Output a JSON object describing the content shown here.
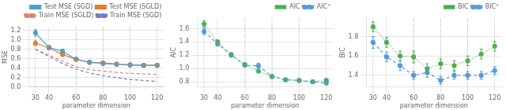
{
  "chart_data": [
    {
      "type": "line",
      "xlabel": "parameter dimension",
      "ylabel": "MSE",
      "x": [
        30,
        40,
        50,
        60,
        70,
        80,
        90,
        100,
        110,
        120
      ],
      "series": [
        {
          "name": "Test MSE (SGD)",
          "color": "#4C9FD4",
          "marker": "circle",
          "line_style": "solid",
          "values": [
            1.15,
            0.84,
            0.76,
            0.59,
            0.53,
            0.5,
            0.48,
            0.47,
            0.46,
            0.46
          ],
          "errors": [
            0.07,
            0.04,
            0.04,
            0.02,
            0.02,
            0.02,
            0.015,
            0.015,
            0.015,
            0.015
          ]
        },
        {
          "name": "Test MSE (SGLD)",
          "color": "#E87D2B",
          "marker": "circle",
          "line_style": "solid",
          "values": [
            0.93,
            0.83,
            0.69,
            0.59,
            0.52,
            0.51,
            0.49,
            0.47,
            0.46,
            0.46
          ],
          "errors": [
            0.05,
            0.04,
            0.03,
            0.02,
            0.02,
            0.02,
            0.015,
            0.015,
            0.015,
            0.015
          ]
        },
        {
          "name": "Train MSE (SGLD)",
          "color": "#E87D77",
          "marker": "none",
          "line_style": "dashed",
          "values": [
            0.8,
            0.68,
            0.55,
            0.43,
            0.37,
            0.34,
            0.31,
            0.29,
            0.28,
            0.27
          ]
        },
        {
          "name": "Train MSE (SGD)",
          "color": "#7777CC",
          "marker": "none",
          "line_style": "dashed",
          "values": [
            0.8,
            0.65,
            0.5,
            0.38,
            0.3,
            0.24,
            0.2,
            0.16,
            0.14,
            0.12
          ]
        }
      ],
      "xlim": [
        25,
        125
      ],
      "xticks": [
        30,
        40,
        60,
        80,
        100,
        120
      ],
      "ylim": [
        0.0,
        1.28
      ],
      "yticks": [
        {
          "value": 0,
          "label": "0.0"
        },
        0.2,
        0.4,
        0.6,
        0.8,
        {
          "value": 1,
          "label": "1.0"
        },
        1.2
      ],
      "vlines": [
        60,
        80,
        100
      ],
      "grid": true,
      "legend": "upper right"
    },
    {
      "type": "line",
      "xlabel": "parameter dimension",
      "ylabel": "AIC",
      "x": [
        30,
        40,
        50,
        60,
        70,
        80,
        90,
        100,
        110,
        120
      ],
      "series": [
        {
          "name": "AIC",
          "color": "#4CAF50",
          "marker": "circle",
          "line_style": "dotted",
          "values": [
            1.67,
            1.4,
            1.2,
            1.06,
            0.96,
            0.88,
            0.83,
            0.82,
            0.8,
            0.82
          ],
          "errors": [
            0.05,
            0.03,
            0.025,
            0.02,
            0.02,
            0.018,
            0.016,
            0.016,
            0.02,
            0.025
          ]
        },
        {
          "name": "AIC⁺",
          "color": "#5599DD",
          "marker": "circle",
          "line_style": "dashed",
          "values": [
            1.56,
            1.37,
            1.21,
            1.05,
            1.04,
            0.88,
            0.83,
            0.82,
            0.8,
            0.78
          ],
          "errors": [
            0.05,
            0.03,
            0.025,
            0.03,
            0.04,
            0.018,
            0.016,
            0.016,
            0.02,
            0.025
          ]
        }
      ],
      "xlim": [
        25,
        125
      ],
      "xticks": [
        30,
        40,
        60,
        80,
        100,
        120
      ],
      "ylim": [
        0.72,
        1.76
      ],
      "yticks": [
        0.8,
        {
          "value": 1,
          "label": "1.0"
        },
        1.2,
        1.4,
        1.6
      ],
      "vlines": [
        60,
        80,
        100
      ],
      "grid": true,
      "legend": "upper right"
    },
    {
      "type": "line",
      "xlabel": "parameter dimension",
      "ylabel": "BIC",
      "x": [
        30,
        40,
        50,
        60,
        70,
        80,
        90,
        100,
        110,
        120
      ],
      "series": [
        {
          "name": "BIC",
          "color": "#4CAF50",
          "marker": "circle",
          "line_style": "dotted",
          "values": [
            1.9,
            1.74,
            1.6,
            1.59,
            1.47,
            1.52,
            1.5,
            1.55,
            1.62,
            1.7
          ],
          "errors": [
            0.05,
            0.05,
            0.05,
            0.06,
            0.05,
            0.05,
            0.05,
            0.05,
            0.05,
            0.05
          ]
        },
        {
          "name": "BIC⁺",
          "color": "#5599DD",
          "marker": "circle",
          "line_style": "dashed",
          "values": [
            1.74,
            1.59,
            1.5,
            1.4,
            1.43,
            1.35,
            1.4,
            1.4,
            1.4,
            1.45
          ],
          "errors": [
            0.06,
            0.05,
            0.05,
            0.04,
            0.05,
            0.04,
            0.04,
            0.04,
            0.04,
            0.04
          ]
        }
      ],
      "xlim": [
        25,
        125
      ],
      "xticks": [
        30,
        40,
        60,
        80,
        100,
        120
      ],
      "ylim": [
        1.28,
        1.99
      ],
      "yticks": [
        1.4,
        1.6,
        1.8
      ],
      "vlines": [
        60,
        80,
        100
      ],
      "grid": true,
      "legend": "upper right"
    }
  ]
}
